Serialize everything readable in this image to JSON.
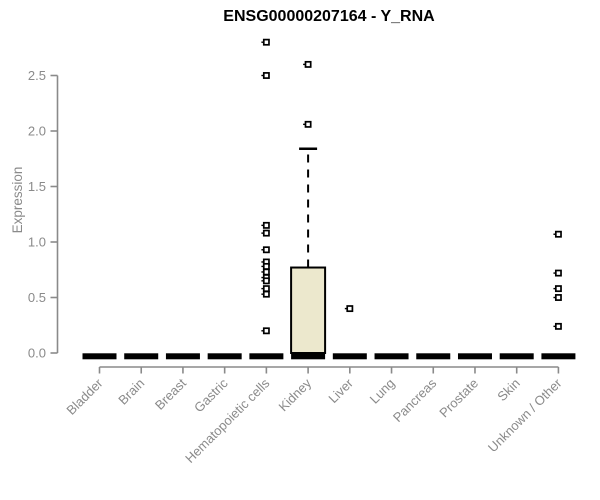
{
  "chart_data": {
    "type": "boxplot",
    "title": "ENSG00000207164 - Y_RNA",
    "ylabel": "Expression",
    "xlabel": "",
    "ylim": [
      0,
      2.85
    ],
    "yticks": [
      0.0,
      0.5,
      1.0,
      1.5,
      2.0,
      2.5
    ],
    "grid": false,
    "legend": "none",
    "categories": [
      "Bladder",
      "Brain",
      "Breast",
      "Gastric",
      "Hematopoietic cells",
      "Kidney",
      "Liver",
      "Lung",
      "Pancreas",
      "Prostate",
      "Skin",
      "Unknown / Other"
    ],
    "series": [
      {
        "category": "Bladder",
        "q1": 0,
        "median": 0,
        "q3": 0,
        "whisker_low": 0,
        "whisker_high": 0,
        "outliers": []
      },
      {
        "category": "Brain",
        "q1": 0,
        "median": 0,
        "q3": 0,
        "whisker_low": 0,
        "whisker_high": 0,
        "outliers": []
      },
      {
        "category": "Breast",
        "q1": 0,
        "median": 0,
        "q3": 0,
        "whisker_low": 0,
        "whisker_high": 0,
        "outliers": []
      },
      {
        "category": "Gastric",
        "q1": 0,
        "median": 0,
        "q3": 0,
        "whisker_low": 0,
        "whisker_high": 0,
        "outliers": []
      },
      {
        "category": "Hematopoietic cells",
        "q1": 0,
        "median": 0,
        "q3": 0,
        "whisker_low": 0,
        "whisker_high": 0,
        "outliers": [
          2.8,
          2.5,
          1.15,
          1.08,
          0.93,
          0.82,
          0.78,
          0.73,
          0.68,
          0.65,
          0.58,
          0.53,
          0.2
        ]
      },
      {
        "category": "Kidney",
        "q1": 0,
        "median": 0,
        "q3": 0.77,
        "whisker_low": 0,
        "whisker_high": 1.84,
        "outliers": [
          2.06,
          2.6
        ]
      },
      {
        "category": "Liver",
        "q1": 0,
        "median": 0,
        "q3": 0,
        "whisker_low": 0,
        "whisker_high": 0,
        "outliers": [
          0.4
        ]
      },
      {
        "category": "Lung",
        "q1": 0,
        "median": 0,
        "q3": 0,
        "whisker_low": 0,
        "whisker_high": 0,
        "outliers": []
      },
      {
        "category": "Pancreas",
        "q1": 0,
        "median": 0,
        "q3": 0,
        "whisker_low": 0,
        "whisker_high": 0,
        "outliers": []
      },
      {
        "category": "Prostate",
        "q1": 0,
        "median": 0,
        "q3": 0,
        "whisker_low": 0,
        "whisker_high": 0,
        "outliers": []
      },
      {
        "category": "Skin",
        "q1": 0,
        "median": 0,
        "q3": 0,
        "whisker_low": 0,
        "whisker_high": 0,
        "outliers": []
      },
      {
        "category": "Unknown / Other",
        "q1": 0,
        "median": 0,
        "q3": 0,
        "whisker_low": 0,
        "whisker_high": 0,
        "outliers": [
          1.07,
          0.72,
          0.58,
          0.5,
          0.24
        ]
      }
    ],
    "colors": {
      "box_fill": "#ece8cd",
      "box_stroke": "#000000",
      "median": "#000000",
      "whisker": "#000000",
      "outlier_stroke": "#000000",
      "outlier_fill": "#ffffff",
      "axis": "#8a8a8a",
      "tick_text": "#8a8a8a",
      "title": "#000000",
      "background": "#ffffff"
    }
  }
}
